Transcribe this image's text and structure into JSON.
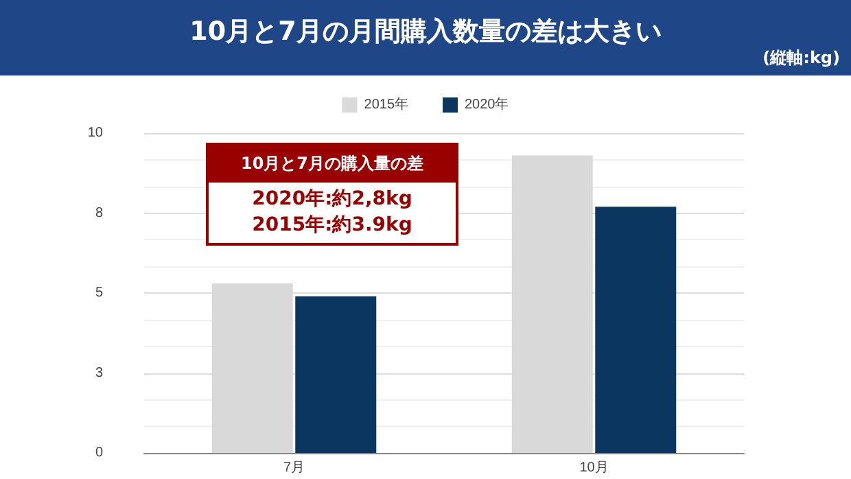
{
  "chart_data": {
    "type": "bar",
    "title": "10月と7月の月間購入数量の差は大きい",
    "ylabel": "(縦軸:kg)",
    "categories": [
      "7月",
      "10月"
    ],
    "series": [
      {
        "name": "2015年",
        "color": "#d9d9d9",
        "values": [
          5.3,
          9.3
        ]
      },
      {
        "name": "2020年",
        "color": "#0b365f",
        "values": [
          4.9,
          7.7
        ]
      }
    ],
    "ylim": [
      0,
      10
    ],
    "yticks": [
      0,
      {
        "value": 2.5,
        "label": "3"
      },
      5,
      {
        "value": 7.5,
        "label": "8"
      },
      10
    ],
    "grid": "y",
    "legend": "top",
    "annotations": [
      "10月と7月の購入量の差",
      "2020年:約2,8kg",
      "2015年:約3.9kg"
    ]
  }
}
